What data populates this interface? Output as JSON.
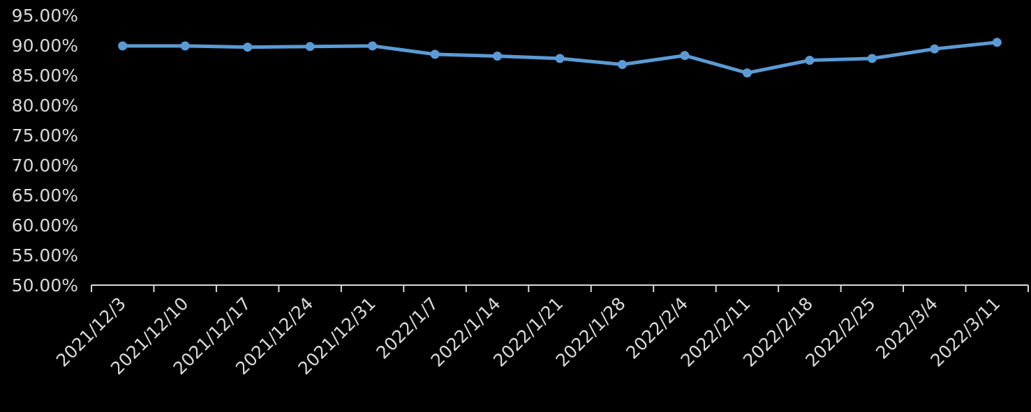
{
  "chart_data": {
    "type": "line",
    "title": "",
    "xlabel": "",
    "ylabel": "",
    "categories": [
      "2021/12/3",
      "2021/12/10",
      "2021/12/17",
      "2021/12/24",
      "2021/12/31",
      "2022/1/7",
      "2022/1/14",
      "2022/1/21",
      "2022/1/28",
      "2022/2/4",
      "2022/2/11",
      "2022/2/18",
      "2022/2/25",
      "2022/3/4",
      "2022/3/11"
    ],
    "series": [
      {
        "values": [
          89.9,
          89.9,
          89.7,
          89.8,
          89.9,
          88.5,
          88.2,
          87.8,
          86.8,
          88.3,
          85.4,
          87.5,
          87.8,
          89.4,
          90.5
        ]
      }
    ],
    "ylim": [
      50,
      95
    ],
    "yticks": [
      "50.00%",
      "55.00%",
      "60.00%",
      "65.00%",
      "70.00%",
      "75.00%",
      "80.00%",
      "85.00%",
      "90.00%",
      "95.00%"
    ],
    "grid": false,
    "legend": "none",
    "colors": {
      "background": "#000000",
      "series": "#5b9bd5",
      "text": "#d9d9d9",
      "axis": "#d9d9d9"
    }
  }
}
